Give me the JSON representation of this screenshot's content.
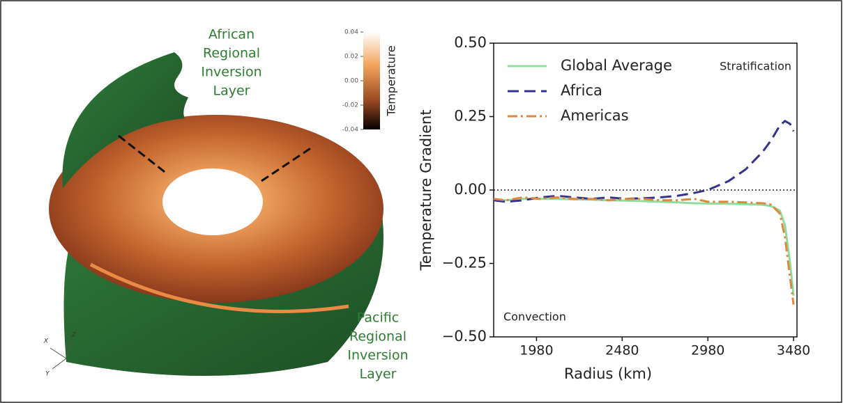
{
  "chart_data": {
    "type": "line",
    "xlabel": "Radius (km)",
    "ylabel": "Temperature Gradient",
    "x": [
      1730,
      1800,
      1900,
      2000,
      2100,
      2200,
      2300,
      2400,
      2500,
      2600,
      2700,
      2800,
      2900,
      2980,
      3100,
      3200,
      3300,
      3350,
      3400,
      3430,
      3460,
      3480
    ],
    "series": [
      {
        "name": "Global Average",
        "color": "#8fdc9c",
        "dash": "solid",
        "values": [
          -0.035,
          -0.035,
          -0.03,
          -0.03,
          -0.03,
          -0.032,
          -0.033,
          -0.035,
          -0.036,
          -0.038,
          -0.04,
          -0.042,
          -0.045,
          -0.046,
          -0.047,
          -0.048,
          -0.05,
          -0.055,
          -0.07,
          -0.12,
          -0.25,
          -0.36
        ]
      },
      {
        "name": "Africa",
        "color": "#33328f",
        "dash": "dashed",
        "values": [
          -0.035,
          -0.04,
          -0.035,
          -0.025,
          -0.02,
          -0.025,
          -0.03,
          -0.025,
          -0.03,
          -0.028,
          -0.025,
          -0.02,
          -0.01,
          0.0,
          0.03,
          0.07,
          0.13,
          0.17,
          0.22,
          0.235,
          0.225,
          0.2
        ]
      },
      {
        "name": "Americas",
        "color": "#e0863e",
        "dash": "dashdot",
        "values": [
          -0.03,
          -0.035,
          -0.025,
          -0.03,
          -0.025,
          -0.03,
          -0.03,
          -0.035,
          -0.03,
          -0.03,
          -0.035,
          -0.035,
          -0.03,
          -0.04,
          -0.04,
          -0.042,
          -0.045,
          -0.05,
          -0.08,
          -0.16,
          -0.3,
          -0.39
        ]
      }
    ],
    "xlim": [
      1730,
      3500
    ],
    "xticks": [
      1980,
      2480,
      2980,
      3480
    ],
    "ylim": [
      -0.5,
      0.5
    ],
    "yticks": [
      {
        "value": 0.5,
        "label": "0.50"
      },
      {
        "value": 0.25,
        "label": "0.25"
      },
      {
        "value": 0,
        "label": "0.00"
      },
      {
        "value": -0.25,
        "label": "−0.25"
      },
      {
        "value": -0.5,
        "label": "−0.50"
      }
    ],
    "reference_line": {
      "value": 0,
      "style": "dotted"
    },
    "legend": "upper left",
    "annotations": [
      "Stratification",
      "Convection"
    ]
  },
  "illustration": {
    "labels": [
      [
        "African",
        "Regional",
        "Inversion",
        "Layer"
      ],
      [
        "Pacific",
        "Regional",
        "Inversion",
        "Layer"
      ]
    ],
    "colorbar": {
      "title": "Temperature",
      "ticks": [
        0.04,
        0.02,
        {
          "value": 0,
          "label": "0.00"
        },
        -0.02,
        -0.04
      ]
    },
    "axes": [
      "X",
      "Z",
      "Y"
    ]
  }
}
